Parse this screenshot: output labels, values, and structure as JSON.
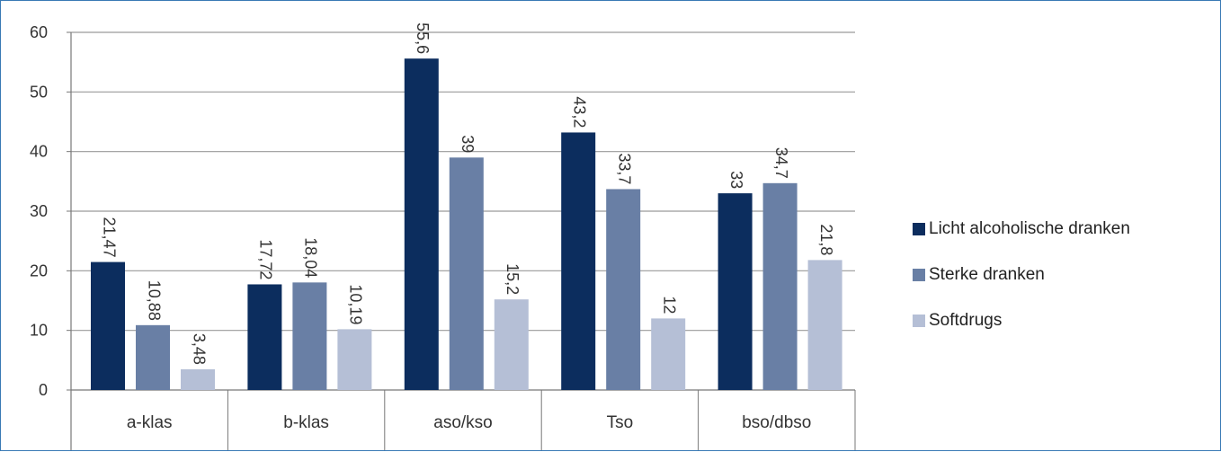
{
  "chart_data": {
    "type": "bar",
    "categories": [
      "a-klas",
      "b-klas",
      "aso/kso",
      "Tso",
      "bso/dbso"
    ],
    "series": [
      {
        "name": "Licht alcoholische dranken",
        "color": "#0c2d5e",
        "values": [
          21.47,
          17.72,
          55.6,
          43.2,
          33
        ],
        "labels": [
          "21,47",
          "17,72",
          "55,6",
          "43,2",
          "33"
        ]
      },
      {
        "name": "Sterke dranken",
        "color": "#697fa5",
        "values": [
          10.88,
          18.04,
          39,
          33.7,
          34.7
        ],
        "labels": [
          "10,88",
          "18,04",
          "39",
          "33,7",
          "34,7"
        ]
      },
      {
        "name": "Softdrugs",
        "color": "#b5bfd6",
        "values": [
          3.48,
          10.19,
          15.2,
          12,
          21.8
        ],
        "labels": [
          "3,48",
          "10,19",
          "15,2",
          "12",
          "21,8"
        ]
      }
    ],
    "ylim": [
      0,
      60
    ],
    "yticks": [
      0,
      10,
      20,
      30,
      40,
      50,
      60
    ],
    "grid": true,
    "legend_position": "right"
  }
}
